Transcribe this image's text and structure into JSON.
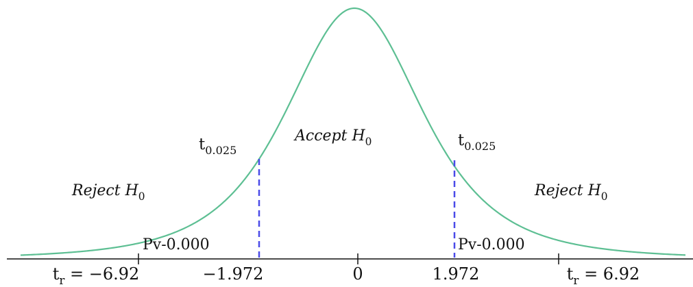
{
  "axis_labels": [
    [
      {
        "t": "t"
      },
      {
        "sub": "r"
      },
      {
        "t": " = −6.92"
      }
    ],
    [
      {
        "t": "−1.972"
      }
    ],
    [
      {
        "t": "0"
      }
    ],
    [
      {
        "t": "1.972"
      }
    ],
    [
      {
        "t": "t"
      },
      {
        "sub": "r"
      },
      {
        "t": " = 6.92"
      }
    ]
  ],
  "p_values": [
    "Pv-0.000",
    "Pv-0.000"
  ],
  "critical_labels": [
    [
      {
        "t": "t"
      },
      {
        "sub": "0.025"
      }
    ],
    [
      {
        "t": "t"
      },
      {
        "sub": "0.025"
      }
    ]
  ],
  "regions": [
    [
      {
        "t": "Reject H"
      },
      {
        "sub": "0"
      }
    ],
    [
      {
        "t": "Accept H"
      },
      {
        "sub": "0"
      }
    ],
    [
      {
        "t": "Reject H"
      },
      {
        "sub": "0"
      }
    ]
  ]
}
